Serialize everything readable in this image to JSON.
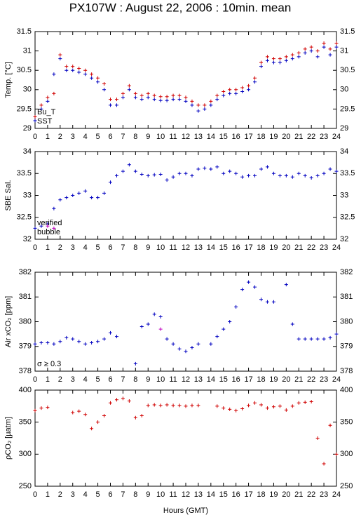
{
  "chart_data": [
    {
      "type": "scatter",
      "title": "PX107W : August 22, 2006 : 10min. mean",
      "ylabel": "Temp. [°C]",
      "xlim": [
        0,
        24
      ],
      "xticks": [
        0,
        1,
        2,
        3,
        4,
        5,
        6,
        7,
        8,
        9,
        10,
        11,
        12,
        13,
        14,
        15,
        16,
        17,
        18,
        19,
        20,
        21,
        22,
        23,
        24
      ],
      "ylim": [
        29,
        31.5
      ],
      "yticks": [
        29,
        29.5,
        30,
        30.5,
        31,
        31.5
      ],
      "legend": "lower left",
      "x": [
        0,
        0.5,
        1,
        1.5,
        2,
        2.5,
        3,
        3.5,
        4,
        4.5,
        5,
        5.5,
        6,
        6.5,
        7,
        7.5,
        8,
        8.5,
        9,
        9.5,
        10,
        10.5,
        11,
        11.5,
        12,
        12.5,
        13,
        13.5,
        14,
        14.5,
        15,
        15.5,
        16,
        16.5,
        17,
        17.5,
        18,
        18.5,
        19,
        19.5,
        20,
        20.5,
        21,
        21.5,
        22,
        22.5,
        23,
        23.5,
        24
      ],
      "series": [
        {
          "name": "Bu_T",
          "color": "#d00000",
          "values": [
            29.3,
            29.6,
            29.8,
            29.9,
            30.9,
            30.6,
            30.6,
            30.55,
            30.5,
            30.4,
            30.3,
            30.15,
            29.75,
            29.75,
            29.9,
            30.1,
            29.9,
            29.85,
            29.9,
            29.85,
            29.82,
            29.82,
            29.85,
            29.85,
            29.8,
            29.7,
            29.6,
            29.6,
            29.7,
            29.85,
            29.95,
            30.0,
            30.0,
            30.05,
            30.1,
            30.3,
            30.7,
            30.85,
            30.8,
            30.8,
            30.85,
            30.9,
            30.95,
            31.05,
            31.1,
            31.0,
            31.2,
            31.05,
            31.2
          ]
        },
        {
          "name": "SST",
          "color": "#0000c0",
          "values": [
            29.2,
            29.5,
            29.7,
            30.4,
            30.8,
            30.5,
            30.5,
            30.45,
            30.4,
            30.3,
            30.2,
            30.0,
            29.6,
            29.6,
            29.8,
            30.0,
            29.8,
            29.75,
            29.8,
            29.75,
            29.72,
            29.72,
            29.75,
            29.75,
            29.7,
            29.6,
            29.45,
            29.5,
            29.6,
            29.75,
            29.85,
            29.9,
            29.9,
            29.95,
            30.0,
            30.2,
            30.6,
            30.75,
            30.7,
            30.7,
            30.75,
            30.8,
            30.85,
            30.95,
            31.0,
            30.85,
            31.1,
            30.9,
            31.1
          ]
        }
      ]
    },
    {
      "type": "scatter",
      "ylabel": "SBE Sal.",
      "xlim": [
        0,
        24
      ],
      "xticks": [
        0,
        1,
        2,
        3,
        4,
        5,
        6,
        7,
        8,
        9,
        10,
        11,
        12,
        13,
        14,
        15,
        16,
        17,
        18,
        19,
        20,
        21,
        22,
        23,
        24
      ],
      "ylim": [
        32,
        34
      ],
      "yticks": [
        32,
        32.5,
        33,
        33.5,
        34
      ],
      "legend": "lower left",
      "x": [
        0,
        0.5,
        1,
        1.5,
        2,
        2.5,
        3,
        3.5,
        4,
        4.5,
        5,
        5.5,
        6,
        6.5,
        7,
        7.5,
        8,
        8.5,
        9,
        9.5,
        10,
        10.5,
        11,
        11.5,
        12,
        12.5,
        13,
        13.5,
        14,
        14.5,
        15,
        15.5,
        16,
        16.5,
        17,
        17.5,
        18,
        18.5,
        19,
        19.5,
        20,
        20.5,
        21,
        21.5,
        22,
        22.5,
        23,
        23.5,
        24
      ],
      "series": [
        {
          "name": "verified",
          "color": "#0000c0",
          "values": [
            32.25,
            32.3,
            32.35,
            32.7,
            32.9,
            32.95,
            33.0,
            33.05,
            33.1,
            32.95,
            32.95,
            33.05,
            33.3,
            33.45,
            33.55,
            33.7,
            33.55,
            33.48,
            33.45,
            33.47,
            33.48,
            33.35,
            33.42,
            33.5,
            33.5,
            33.45,
            33.6,
            33.62,
            33.6,
            33.65,
            33.5,
            33.55,
            33.5,
            33.42,
            33.45,
            33.45,
            33.6,
            33.65,
            33.5,
            33.45,
            33.45,
            33.42,
            33.5,
            33.45,
            33.4,
            33.45,
            33.5,
            33.6,
            33.55
          ]
        },
        {
          "name": "bubble",
          "color": "#c000c0",
          "values": [
            null,
            null,
            32.3,
            32.25,
            null,
            null,
            null,
            null,
            null,
            null,
            null,
            null,
            null,
            null,
            null,
            null,
            null,
            null,
            null,
            null,
            null,
            null,
            null,
            null,
            null,
            null,
            null,
            null,
            null,
            null,
            null,
            null,
            null,
            null,
            null,
            null,
            null,
            null,
            null,
            null,
            null,
            null,
            null,
            null,
            null,
            null,
            null,
            null,
            null
          ]
        }
      ]
    },
    {
      "type": "scatter",
      "ylabel": "Air xCO₂ [ppm]",
      "xlim": [
        0,
        24
      ],
      "xticks": [
        0,
        1,
        2,
        3,
        4,
        5,
        6,
        7,
        8,
        9,
        10,
        11,
        12,
        13,
        14,
        15,
        16,
        17,
        18,
        19,
        20,
        21,
        22,
        23,
        24
      ],
      "ylim": [
        378,
        382
      ],
      "yticks": [
        378,
        379,
        380,
        381,
        382
      ],
      "legend": "lower left",
      "x": [
        0,
        0.5,
        1,
        1.5,
        2,
        2.5,
        3,
        3.5,
        4,
        4.5,
        5,
        5.5,
        6,
        6.5,
        7,
        7.5,
        8,
        8.5,
        9,
        9.5,
        10,
        10.5,
        11,
        11.5,
        12,
        12.5,
        13,
        13.5,
        14,
        14.5,
        15,
        15.5,
        16,
        16.5,
        17,
        17.5,
        18,
        18.5,
        19,
        19.5,
        20,
        20.5,
        21,
        21.5,
        22,
        22.5,
        23,
        23.5,
        24
      ],
      "series": [
        {
          "name": "σ ≥ 0.3",
          "color": "#c000c0",
          "values": [
            null,
            null,
            null,
            null,
            null,
            null,
            null,
            null,
            null,
            null,
            null,
            null,
            null,
            null,
            null,
            null,
            null,
            null,
            null,
            null,
            379.7,
            null,
            null,
            null,
            null,
            null,
            null,
            null,
            null,
            null,
            null,
            null,
            null,
            null,
            null,
            null,
            null,
            null,
            null,
            null,
            null,
            null,
            null,
            null,
            null,
            null,
            null,
            null,
            null
          ]
        },
        {
          "color": "#0000c0",
          "values": [
            379.1,
            379.15,
            379.15,
            379.1,
            379.2,
            379.35,
            379.3,
            379.2,
            379.1,
            379.15,
            379.2,
            379.3,
            379.55,
            379.4,
            null,
            null,
            378.3,
            379.8,
            379.9,
            380.3,
            380.2,
            379.3,
            379.1,
            378.9,
            378.8,
            378.95,
            379.1,
            null,
            379.1,
            379.4,
            379.7,
            380.0,
            380.6,
            381.3,
            381.6,
            381.4,
            380.9,
            380.8,
            380.8,
            null,
            381.5,
            379.9,
            379.3,
            379.3,
            379.3,
            379.3,
            379.3,
            379.35,
            379.5
          ]
        }
      ]
    },
    {
      "type": "scatter",
      "ylabel": "ρCO₂ [µatm]",
      "xlabel": "Hours (GMT)",
      "xlim": [
        0,
        24
      ],
      "xticks": [
        0,
        1,
        2,
        3,
        4,
        5,
        6,
        7,
        8,
        9,
        10,
        11,
        12,
        13,
        14,
        15,
        16,
        17,
        18,
        19,
        20,
        21,
        22,
        23,
        24
      ],
      "ylim": [
        250,
        400
      ],
      "yticks": [
        250,
        300,
        350,
        400
      ],
      "x": [
        0,
        0.5,
        1,
        1.5,
        2,
        2.5,
        3,
        3.5,
        4,
        4.5,
        5,
        5.5,
        6,
        6.5,
        7,
        7.5,
        8,
        8.5,
        9,
        9.5,
        10,
        10.5,
        11,
        11.5,
        12,
        12.5,
        13,
        13.5,
        14,
        14.5,
        15,
        15.5,
        16,
        16.5,
        17,
        17.5,
        18,
        18.5,
        19,
        19.5,
        20,
        20.5,
        21,
        21.5,
        22,
        22.5,
        23,
        23.5,
        24
      ],
      "series": [
        {
          "color": "#d00000",
          "values": [
            368,
            372,
            373,
            null,
            null,
            null,
            365,
            367,
            362,
            340,
            350,
            360,
            380,
            385,
            387,
            383,
            357,
            360,
            376,
            377,
            376,
            377,
            376,
            376,
            375,
            376,
            376,
            null,
            null,
            375,
            372,
            370,
            368,
            371,
            376,
            380,
            377,
            372,
            374,
            375,
            369,
            375,
            380,
            381,
            382,
            325,
            285,
            345,
            300
          ]
        }
      ]
    }
  ]
}
